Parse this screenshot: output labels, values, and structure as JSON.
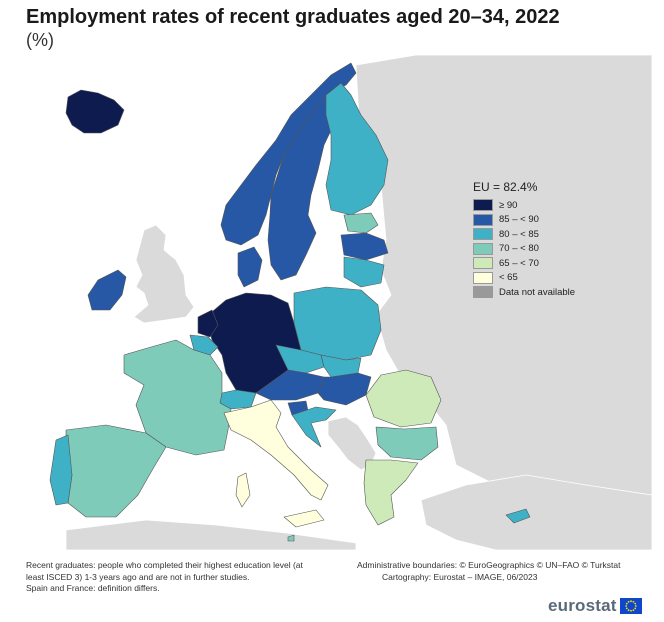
{
  "title": "Employment rates of recent graduates aged 20–34, 2022",
  "subtitle": "(%)",
  "legend": {
    "title": "EU = 82.4%",
    "items": [
      {
        "label": "≥ 90",
        "color": "#0d1b4f"
      },
      {
        "label": "85 – < 90",
        "color": "#2658a5"
      },
      {
        "label": "80 – < 85",
        "color": "#3fb1c6"
      },
      {
        "label": "70 – < 80",
        "color": "#7fcbba"
      },
      {
        "label": "65 – < 70",
        "color": "#cdeab8"
      },
      {
        "label": "< 65",
        "color": "#ffffdd"
      },
      {
        "label": "Data not available",
        "color": "#999999"
      }
    ]
  },
  "map": {
    "background_color": "#ffffff",
    "non_eu_land_color": "#dadada",
    "regions": [
      {
        "name": "Iceland",
        "class": "≥ 90"
      },
      {
        "name": "Norway",
        "class": "85 – < 90"
      },
      {
        "name": "Sweden",
        "class": "85 – < 90"
      },
      {
        "name": "Finland",
        "class": "80 – < 85"
      },
      {
        "name": "Estonia",
        "class": "70 – < 80"
      },
      {
        "name": "Latvia",
        "class": "85 – < 90"
      },
      {
        "name": "Lithuania",
        "class": "80 – < 85"
      },
      {
        "name": "Denmark",
        "class": "85 – < 90"
      },
      {
        "name": "Ireland",
        "class": "85 – < 90"
      },
      {
        "name": "Netherlands",
        "class": "≥ 90"
      },
      {
        "name": "Belgium",
        "class": "80 – < 85"
      },
      {
        "name": "Luxembourg",
        "class": "≥ 90"
      },
      {
        "name": "Germany",
        "class": "≥ 90"
      },
      {
        "name": "Poland",
        "class": "80 – < 85"
      },
      {
        "name": "Czechia",
        "class": "80 – < 85"
      },
      {
        "name": "Slovakia",
        "class": "80 – < 85"
      },
      {
        "name": "Austria",
        "class": "85 – < 90"
      },
      {
        "name": "Hungary",
        "class": "85 – < 90"
      },
      {
        "name": "Switzerland",
        "class": "80 – < 85"
      },
      {
        "name": "France",
        "class": "70 – < 80"
      },
      {
        "name": "Spain",
        "class": "70 – < 80"
      },
      {
        "name": "Portugal",
        "class": "80 – < 85"
      },
      {
        "name": "Italy",
        "class": "< 65"
      },
      {
        "name": "Slovenia",
        "class": "85 – < 90"
      },
      {
        "name": "Croatia",
        "class": "80 – < 85"
      },
      {
        "name": "Romania",
        "class": "65 – < 70"
      },
      {
        "name": "Bulgaria",
        "class": "70 – < 80"
      },
      {
        "name": "Greece",
        "class": "65 – < 70"
      },
      {
        "name": "Cyprus",
        "class": "80 – < 85"
      },
      {
        "name": "Malta",
        "class": "70 – < 80"
      }
    ]
  },
  "footnotes": {
    "left_line1": "Recent graduates: people who completed their highest education level (at",
    "left_line2": "least ISCED 3) 1-3 years ago and are not in further studies.",
    "left_line3": "Spain and France: definition differs.",
    "right_line1": "Administrative boundaries: © EuroGeographics © UN–FAO © Turkstat",
    "right_line2": "Cartography: Eurostat – IMAGE, 06/2023"
  },
  "brand": {
    "name": "eurostat",
    "flag_color": "#0e47cb",
    "star_color": "#ffdd00"
  }
}
